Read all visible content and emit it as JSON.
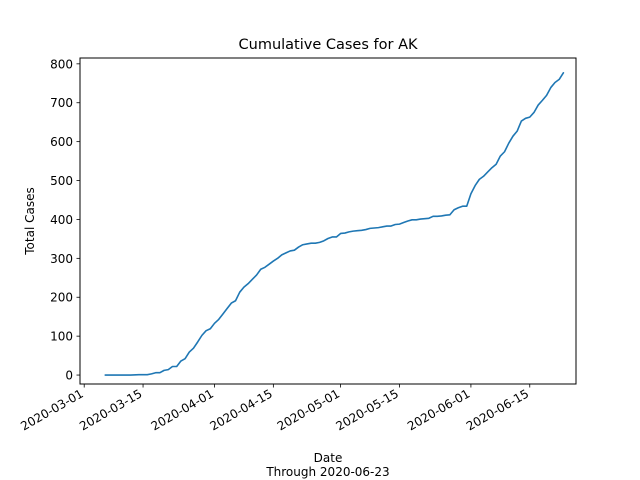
{
  "chart_data": {
    "type": "line",
    "title": "Cumulative Cases for AK",
    "xlabel": "Date",
    "xlabel_sub": "Through 2020-06-23",
    "ylabel": "Total Cases",
    "ylim": [
      -23,
      815
    ],
    "xlim": [
      "2020-02-29",
      "2020-06-26"
    ],
    "yticks": [
      0,
      100,
      200,
      300,
      400,
      500,
      600,
      700,
      800
    ],
    "xticks": [
      "2020-03-01",
      "2020-03-15",
      "2020-04-01",
      "2020-04-15",
      "2020-05-01",
      "2020-05-15",
      "2020-06-01",
      "2020-06-15"
    ],
    "grid": false,
    "color": "#1f77b4",
    "series": [
      {
        "points": [
          [
            "2020-03-06",
            0
          ],
          [
            "2020-03-08",
            0
          ],
          [
            "2020-03-10",
            0
          ],
          [
            "2020-03-12",
            0
          ],
          [
            "2020-03-14",
            1
          ],
          [
            "2020-03-16",
            1
          ],
          [
            "2020-03-17",
            3
          ],
          [
            "2020-03-18",
            6
          ],
          [
            "2020-03-19",
            6
          ],
          [
            "2020-03-20",
            12
          ],
          [
            "2020-03-21",
            14
          ],
          [
            "2020-03-22",
            22
          ],
          [
            "2020-03-23",
            22
          ],
          [
            "2020-03-24",
            36
          ],
          [
            "2020-03-25",
            42
          ],
          [
            "2020-03-26",
            59
          ],
          [
            "2020-03-27",
            69
          ],
          [
            "2020-03-28",
            85
          ],
          [
            "2020-03-29",
            102
          ],
          [
            "2020-03-30",
            114
          ],
          [
            "2020-03-31",
            119
          ],
          [
            "2020-04-01",
            133
          ],
          [
            "2020-04-02",
            143
          ],
          [
            "2020-04-03",
            157
          ],
          [
            "2020-04-04",
            171
          ],
          [
            "2020-04-05",
            185
          ],
          [
            "2020-04-06",
            191
          ],
          [
            "2020-04-07",
            213
          ],
          [
            "2020-04-08",
            226
          ],
          [
            "2020-04-09",
            235
          ],
          [
            "2020-04-10",
            246
          ],
          [
            "2020-04-11",
            257
          ],
          [
            "2020-04-12",
            272
          ],
          [
            "2020-04-13",
            277
          ],
          [
            "2020-04-14",
            285
          ],
          [
            "2020-04-15",
            293
          ],
          [
            "2020-04-16",
            300
          ],
          [
            "2020-04-17",
            309
          ],
          [
            "2020-04-18",
            314
          ],
          [
            "2020-04-19",
            319
          ],
          [
            "2020-04-20",
            321
          ],
          [
            "2020-04-21",
            329
          ],
          [
            "2020-04-22",
            335
          ],
          [
            "2020-04-23",
            337
          ],
          [
            "2020-04-24",
            339
          ],
          [
            "2020-04-25",
            339
          ],
          [
            "2020-04-26",
            341
          ],
          [
            "2020-04-27",
            345
          ],
          [
            "2020-04-28",
            351
          ],
          [
            "2020-04-29",
            355
          ],
          [
            "2020-04-30",
            355
          ],
          [
            "2020-05-01",
            364
          ],
          [
            "2020-05-02",
            365
          ],
          [
            "2020-05-03",
            368
          ],
          [
            "2020-05-04",
            370
          ],
          [
            "2020-05-05",
            371
          ],
          [
            "2020-05-06",
            372
          ],
          [
            "2020-05-07",
            374
          ],
          [
            "2020-05-08",
            377
          ],
          [
            "2020-05-09",
            378
          ],
          [
            "2020-05-10",
            379
          ],
          [
            "2020-05-11",
            381
          ],
          [
            "2020-05-12",
            383
          ],
          [
            "2020-05-13",
            383
          ],
          [
            "2020-05-14",
            387
          ],
          [
            "2020-05-15",
            388
          ],
          [
            "2020-05-16",
            392
          ],
          [
            "2020-05-17",
            396
          ],
          [
            "2020-05-18",
            399
          ],
          [
            "2020-05-19",
            399
          ],
          [
            "2020-05-20",
            401
          ],
          [
            "2020-05-21",
            402
          ],
          [
            "2020-05-22",
            403
          ],
          [
            "2020-05-23",
            408
          ],
          [
            "2020-05-24",
            408
          ],
          [
            "2020-05-25",
            409
          ],
          [
            "2020-05-26",
            411
          ],
          [
            "2020-05-27",
            412
          ],
          [
            "2020-05-28",
            425
          ],
          [
            "2020-05-29",
            430
          ],
          [
            "2020-05-30",
            434
          ],
          [
            "2020-05-31",
            434
          ],
          [
            "2020-06-01",
            466
          ],
          [
            "2020-06-02",
            487
          ],
          [
            "2020-06-03",
            503
          ],
          [
            "2020-06-04",
            511
          ],
          [
            "2020-06-05",
            522
          ],
          [
            "2020-06-06",
            533
          ],
          [
            "2020-06-07",
            542
          ],
          [
            "2020-06-08",
            563
          ],
          [
            "2020-06-09",
            574
          ],
          [
            "2020-06-10",
            596
          ],
          [
            "2020-06-11",
            614
          ],
          [
            "2020-06-12",
            627
          ],
          [
            "2020-06-13",
            653
          ],
          [
            "2020-06-14",
            660
          ],
          [
            "2020-06-15",
            663
          ],
          [
            "2020-06-16",
            675
          ],
          [
            "2020-06-17",
            694
          ],
          [
            "2020-06-18",
            706
          ],
          [
            "2020-06-19",
            719
          ],
          [
            "2020-06-20",
            739
          ],
          [
            "2020-06-21",
            752
          ],
          [
            "2020-06-22",
            760
          ],
          [
            "2020-06-23",
            777
          ]
        ]
      }
    ]
  }
}
